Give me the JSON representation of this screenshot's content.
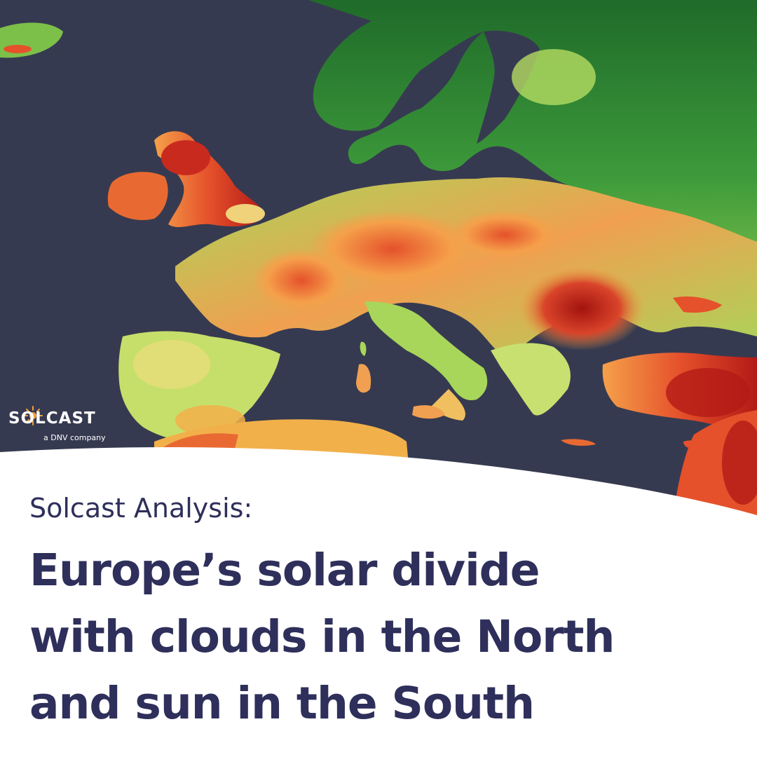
{
  "brand": {
    "name": "SOLCAST",
    "tagline": "a DNV company"
  },
  "map": {
    "region": "Europe",
    "sea_color": "#363a50",
    "palette": [
      "#1f6b2a",
      "#3d9a3a",
      "#a8d65a",
      "#f0e27a",
      "#f59a3c",
      "#e5512b",
      "#b41a16"
    ]
  },
  "title": {
    "kicker": "Solcast Analysis:",
    "line1": "Europe’s solar divide",
    "line2": "with clouds in the North",
    "line3": "and sun in the South"
  }
}
